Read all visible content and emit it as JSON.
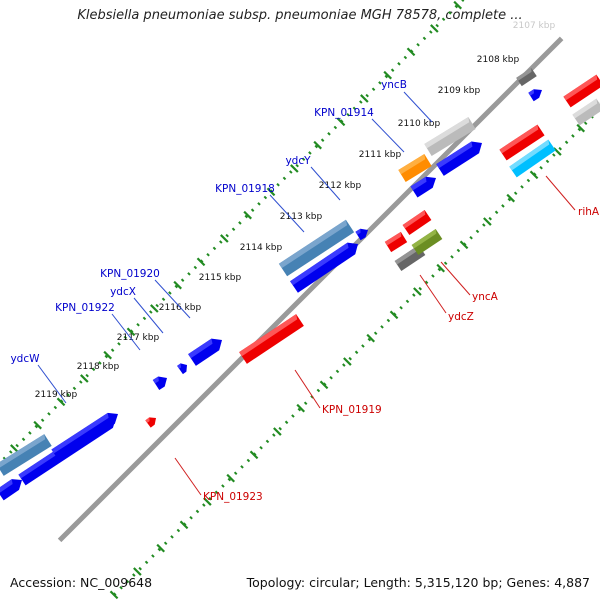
{
  "title": "Klebsiella pneumoniae subsp. pneumoniae MGH 78578, complete ...",
  "footer": {
    "accession": "Accession: NC_009648",
    "summary": "Topology: circular; Length: 5,315,120 bp; Genes: 4,887"
  },
  "colors": {
    "backbone": "#9a9a9a",
    "ticks": "#228b22",
    "gene_label_forward": "#0000cc",
    "gene_label_reverse": "#cc0000"
  },
  "kbp_labels": [
    "2107 kbp",
    "2108 kbp",
    "2109 kbp",
    "2110 kbp",
    "2111 kbp",
    "2112 kbp",
    "2113 kbp",
    "2114 kbp",
    "2115 kbp",
    "2116 kbp",
    "2117 kbp",
    "2118 kbp",
    "2119 kbp"
  ],
  "genes_forward_labels": [
    "yncB",
    "KPN_01914",
    "ydcY",
    "KPN_01918",
    "KPN_01920",
    "ydcX",
    "KPN_01922",
    "ydcW"
  ],
  "genes_reverse_labels": [
    "rihA",
    "yncA",
    "ydcZ",
    "KPN_01919",
    "KPN_01923"
  ]
}
